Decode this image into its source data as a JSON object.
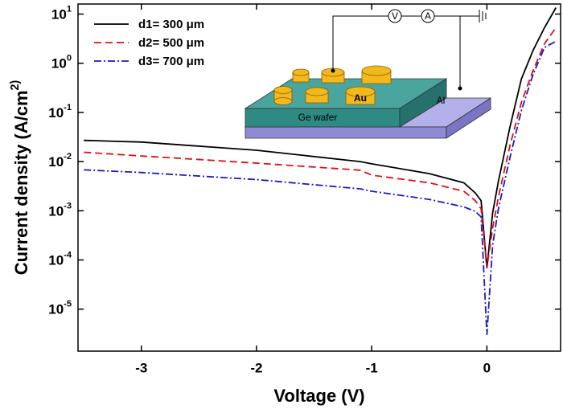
{
  "chart_data": {
    "type": "line",
    "x_label": "Voltage (V)",
    "y_label": "Current density (A/cm^2)",
    "y_scale": "log",
    "x": [
      -3.5,
      -3.0,
      -2.0,
      -1.1,
      -1.0,
      -0.5,
      -0.2,
      -0.1,
      -0.05,
      0,
      0.05,
      0.1,
      0.2,
      0.3,
      0.4,
      0.5,
      0.6
    ],
    "series": [
      {
        "name": "d1= 300 μm",
        "color": "#000000",
        "dash": "solid",
        "values": [
          0.027,
          0.025,
          0.017,
          0.01,
          0.009,
          0.0057,
          0.0037,
          0.0023,
          0.0016,
          6.8e-05,
          0.0009,
          0.004,
          0.05,
          0.48,
          1.8,
          5.3,
          13.5
        ]
      },
      {
        "name": "d2= 500 μm",
        "color": "#e01010",
        "dash": "dashed",
        "values": [
          0.0155,
          0.013,
          0.0093,
          0.0067,
          0.0053,
          0.0037,
          0.0025,
          0.0016,
          0.0011,
          7e-05,
          0.00044,
          0.0019,
          0.021,
          0.16,
          0.7,
          2.5,
          5.3
        ]
      },
      {
        "name": "d3= 700 μm",
        "color": "#1a1ac8",
        "dash": "dashdot",
        "values": [
          0.0068,
          0.006,
          0.0043,
          0.0028,
          0.0025,
          0.0017,
          0.0012,
          0.00097,
          0.00075,
          3e-06,
          0.0002,
          0.0011,
          0.012,
          0.11,
          0.58,
          2.1,
          2.8
        ]
      }
    ],
    "xlim": [
      -3.55,
      0.64
    ],
    "ylim": [
      1.4e-06,
      16
    ],
    "xticks": [
      -3,
      -2,
      -1,
      0
    ],
    "yticks": [
      {
        "value": 10,
        "label": "10^1"
      },
      {
        "value": 1,
        "label": "10^0"
      },
      {
        "value": 0.1,
        "label": "10^-1"
      },
      {
        "value": 0.01,
        "label": "10^-2"
      },
      {
        "value": 0.001,
        "label": "10^-3"
      },
      {
        "value": 0.0001,
        "label": "10^-4"
      },
      {
        "value": 1e-05,
        "label": "10^-5"
      }
    ],
    "legend": "upper left",
    "inset_labels": [
      "V",
      "A",
      "Au",
      "Al",
      "Ge wafer"
    ]
  }
}
